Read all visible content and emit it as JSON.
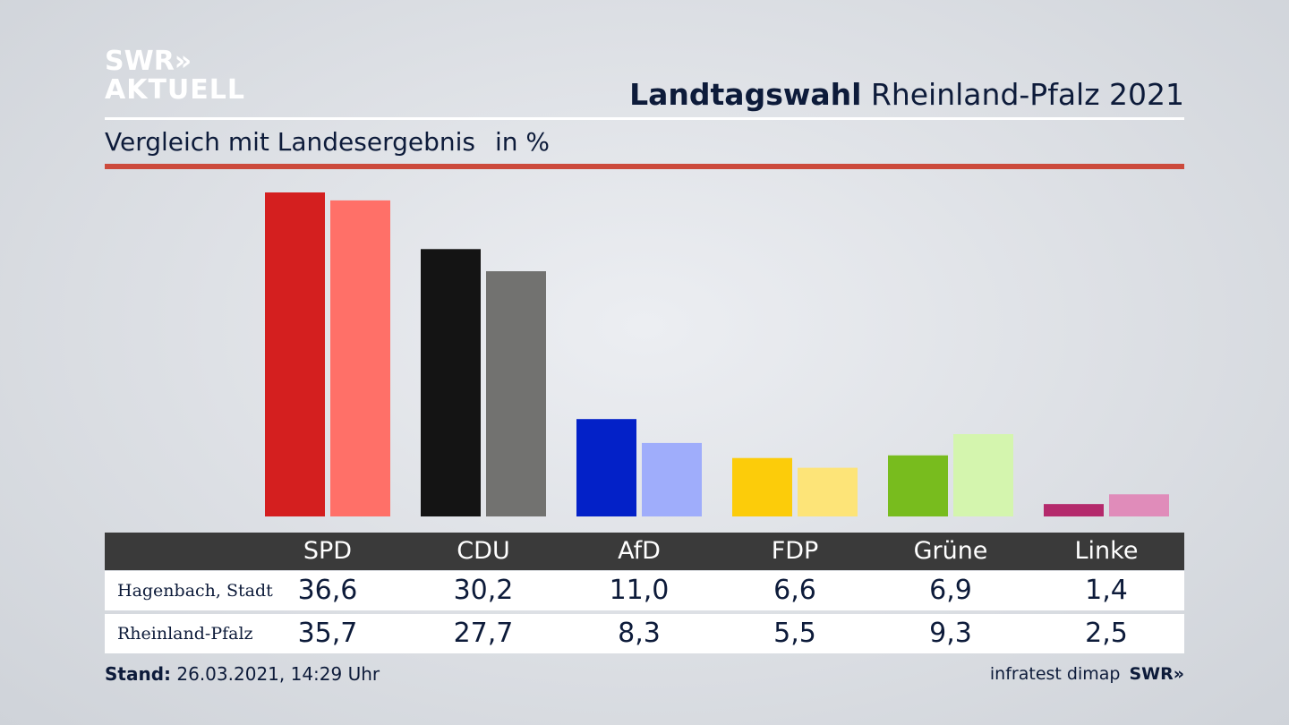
{
  "logo": {
    "line1": "SWR»",
    "line2": "AKTUELL"
  },
  "header": {
    "title_bold": "Landtagswahl",
    "title_rest": "Rheinland-Pfalz 2021",
    "subtitle": "Vergleich mit Landesergebnis",
    "unit": "in %"
  },
  "chart_data": {
    "type": "bar",
    "categories": [
      "SPD",
      "CDU",
      "AfD",
      "FDP",
      "Grüne",
      "Linke"
    ],
    "series": [
      {
        "name": "Hagenbach, Stadt",
        "values": [
          36.6,
          30.2,
          11.0,
          6.6,
          6.9,
          1.4
        ],
        "colors": [
          "#d41f1f",
          "#141414",
          "#0321c8",
          "#fccc0a",
          "#78bc1e",
          "#b42a6c"
        ]
      },
      {
        "name": "Rheinland-Pfalz",
        "values": [
          35.7,
          27.7,
          8.3,
          5.5,
          9.3,
          2.5
        ],
        "colors": [
          "#ff7068",
          "#727270",
          "#9fadfb",
          "#fde478",
          "#d4f5ae",
          "#e08cba"
        ]
      }
    ],
    "ylim": [
      0,
      36.6
    ],
    "grid": false,
    "legend": "table below chart"
  },
  "table": {
    "rows": [
      {
        "label": "Hagenbach, Stadt",
        "values": [
          "36,6",
          "30,2",
          "11,0",
          "6,6",
          "6,9",
          "1,4"
        ]
      },
      {
        "label": "Rheinland-Pfalz",
        "values": [
          "35,7",
          "27,7",
          "8,3",
          "5,5",
          "9,3",
          "2,5"
        ]
      }
    ]
  },
  "footer": {
    "stand_label": "Stand:",
    "stand_value": "26.03.2021, 14:29 Uhr",
    "source": "infratest dimap",
    "source_logo": "SWR»"
  }
}
